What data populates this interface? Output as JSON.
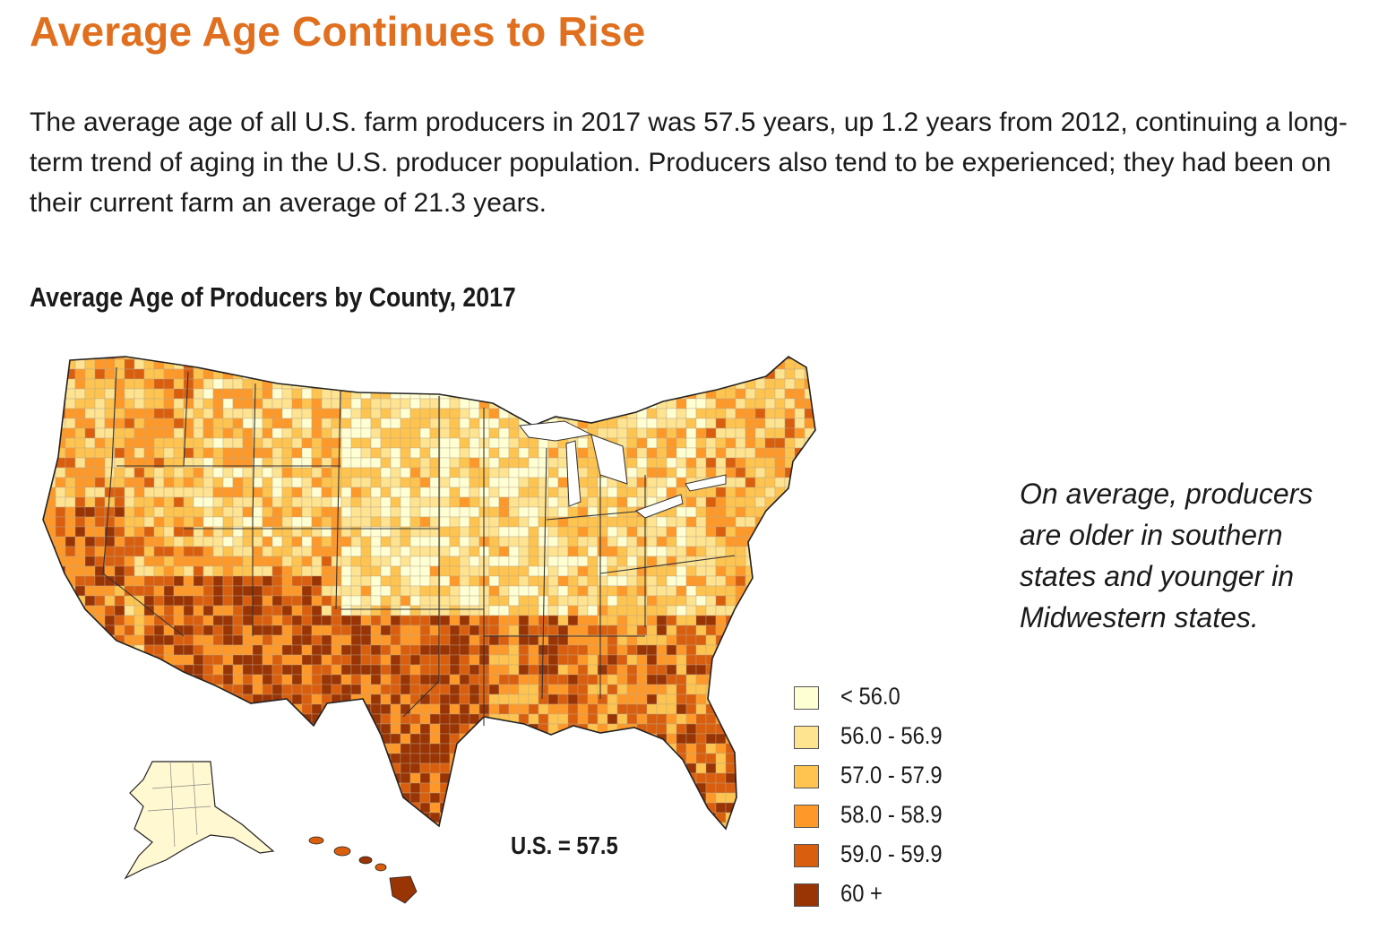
{
  "title": "Average Age Continues to Rise",
  "intro": "The average age of all U.S. farm producers in 2017 was 57.5 years, up 1.2 years from 2012, continuing a long-term trend of aging in the U.S. producer population. Producers also tend to be experienced; they had been on their current farm an average of 21.3 years.",
  "map": {
    "title": "Average Age of Producers by County, 2017",
    "us_value": "U.S. = 57.5",
    "legend": [
      {
        "label": "< 56.0",
        "color": "#ffffd4"
      },
      {
        "label": "56.0 - 56.9",
        "color": "#fee391"
      },
      {
        "label": "57.0 - 57.9",
        "color": "#fec44f"
      },
      {
        "label": "58.0 - 58.9",
        "color": "#fe9929"
      },
      {
        "label": "59.0 - 59.9",
        "color": "#d95f0e"
      },
      {
        "label": "60 +",
        "color": "#993404"
      }
    ]
  },
  "note": "On average, producers are older in southern states and younger in Midwestern states."
}
